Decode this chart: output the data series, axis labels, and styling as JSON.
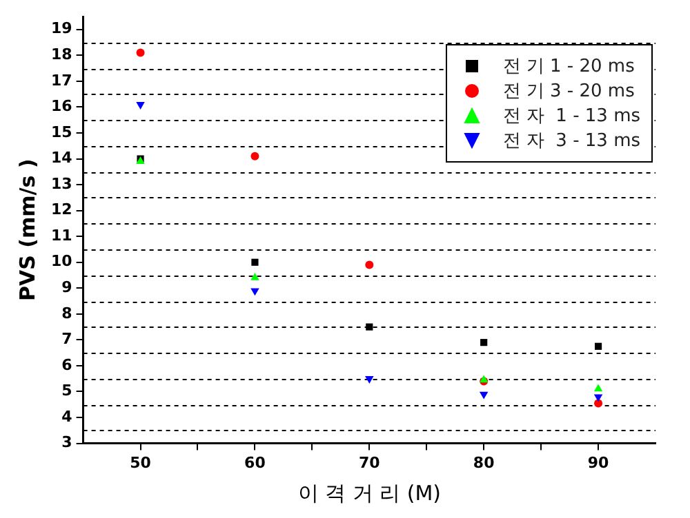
{
  "chart_data": {
    "type": "scatter",
    "xlabel": "이 격 거 리 (M)",
    "ylabel": "PVS (mm/s )",
    "x": [
      50,
      60,
      70,
      80,
      90
    ],
    "xlim": [
      45,
      95
    ],
    "xticks": [
      50,
      {
        "value": 55,
        "label": null
      },
      60,
      {
        "value": 65,
        "label": null
      },
      70,
      {
        "value": 75,
        "label": null
      },
      80,
      {
        "value": 85,
        "label": null
      },
      90
    ],
    "ylim": [
      3,
      19.5
    ],
    "yticks": [
      3,
      {
        "value": 3.5,
        "label": null
      },
      4,
      {
        "value": 4.5,
        "label": null
      },
      5,
      {
        "value": 5.5,
        "label": null
      },
      6,
      {
        "value": 6.5,
        "label": null
      },
      7,
      {
        "value": 7.5,
        "label": null
      },
      8,
      {
        "value": 8.5,
        "label": null
      },
      9,
      {
        "value": 9.5,
        "label": null
      },
      10,
      {
        "value": 10.5,
        "label": null
      },
      11,
      {
        "value": 11.5,
        "label": null
      },
      12,
      {
        "value": 12.5,
        "label": null
      },
      13,
      {
        "value": 13.5,
        "label": null
      },
      14,
      {
        "value": 14.5,
        "label": null
      },
      15,
      {
        "value": 15.5,
        "label": null
      },
      16,
      {
        "value": 16.5,
        "label": null
      },
      17,
      {
        "value": 17.5,
        "label": null
      },
      18,
      {
        "value": 18.5,
        "label": null
      },
      19
    ],
    "grid": "y",
    "legend": "top right",
    "series": [
      {
        "name": "전 기 1 - 20 ms",
        "color": "#000000",
        "marker": "square",
        "values": [
          14.0,
          10.0,
          7.5,
          6.9,
          6.75
        ]
      },
      {
        "name": "전 기 3 - 20 ms",
        "color": "#ff0000",
        "marker": "circle",
        "values": [
          18.1,
          14.1,
          9.9,
          5.4,
          4.55
        ]
      },
      {
        "name": "전 자  1 - 13 ms",
        "color": "#00ff00",
        "marker": "triangle",
        "values": [
          13.9,
          9.4,
          null,
          5.45,
          5.1
        ]
      },
      {
        "name": "전 자  3 - 13 ms",
        "color": "#0000ff",
        "marker": "triangle-down",
        "values": [
          16.1,
          8.9,
          5.5,
          4.9,
          4.8
        ]
      }
    ]
  }
}
